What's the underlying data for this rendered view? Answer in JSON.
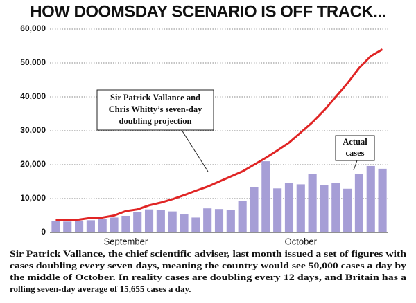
{
  "chart_data": {
    "type": "bar",
    "title": "HOW DOOMSDAY SCENARIO IS OFF TRACK...",
    "categories": [
      null,
      null,
      null,
      null,
      null,
      null,
      "September",
      null,
      null,
      null,
      null,
      null,
      null,
      null,
      null,
      null,
      null,
      null,
      null,
      null,
      null,
      "October",
      null,
      null,
      null,
      null,
      null,
      null,
      null
    ],
    "series": [
      {
        "name": "Actual cases",
        "type": "bar",
        "color": "#a69ed6",
        "values": [
          3300,
          3200,
          3500,
          3600,
          3900,
          4400,
          4900,
          6000,
          6800,
          6600,
          6200,
          5300,
          4400,
          7100,
          6900,
          6600,
          9300,
          13300,
          21000,
          13000,
          14500,
          14200,
          17300,
          13900,
          14600,
          12900,
          17300,
          19600,
          18800
        ]
      },
      {
        "name": "Sir Patrick Vallance and Chris Whitty's seven-day doubling projection",
        "type": "line",
        "color": "#e02424",
        "values": [
          3700,
          3700,
          3800,
          4300,
          4400,
          5000,
          6300,
          6800,
          8000,
          8800,
          9800,
          11000,
          12300,
          13500,
          15000,
          16500,
          18000,
          20000,
          22000,
          24200,
          26500,
          29500,
          32500,
          36000,
          40000,
          44000,
          48500,
          52000,
          54000
        ]
      }
    ],
    "annotations": [
      {
        "lines": [
          "Sir Patrick Vallance and",
          "Chris Whitty’s seven-day",
          "doubling projection"
        ]
      },
      {
        "lines": [
          "Actual",
          "cases"
        ]
      }
    ],
    "caption": [
      "Sir Patrick Vallance, the chief scientific adviser, last month issued a set of figures with",
      "cases doubling every seven days, meaning the country would see 50,000 cases a day by",
      "the middle of October. In reality cases are doubling every 12 days, and Britain has a",
      "rolling seven-day average of 15,655 cases a day."
    ],
    "ylim": [
      0,
      60000
    ],
    "yticks": [
      {
        "value": 0,
        "label": "0"
      },
      {
        "value": 10000,
        "label": "10,000"
      },
      {
        "value": 20000,
        "label": "20,000"
      },
      {
        "value": 30000,
        "label": "30,000"
      },
      {
        "value": 40000,
        "label": "40,000"
      },
      {
        "value": 50000,
        "label": "50,000"
      },
      {
        "value": 60000,
        "label": "60,000"
      }
    ],
    "grid": true
  }
}
